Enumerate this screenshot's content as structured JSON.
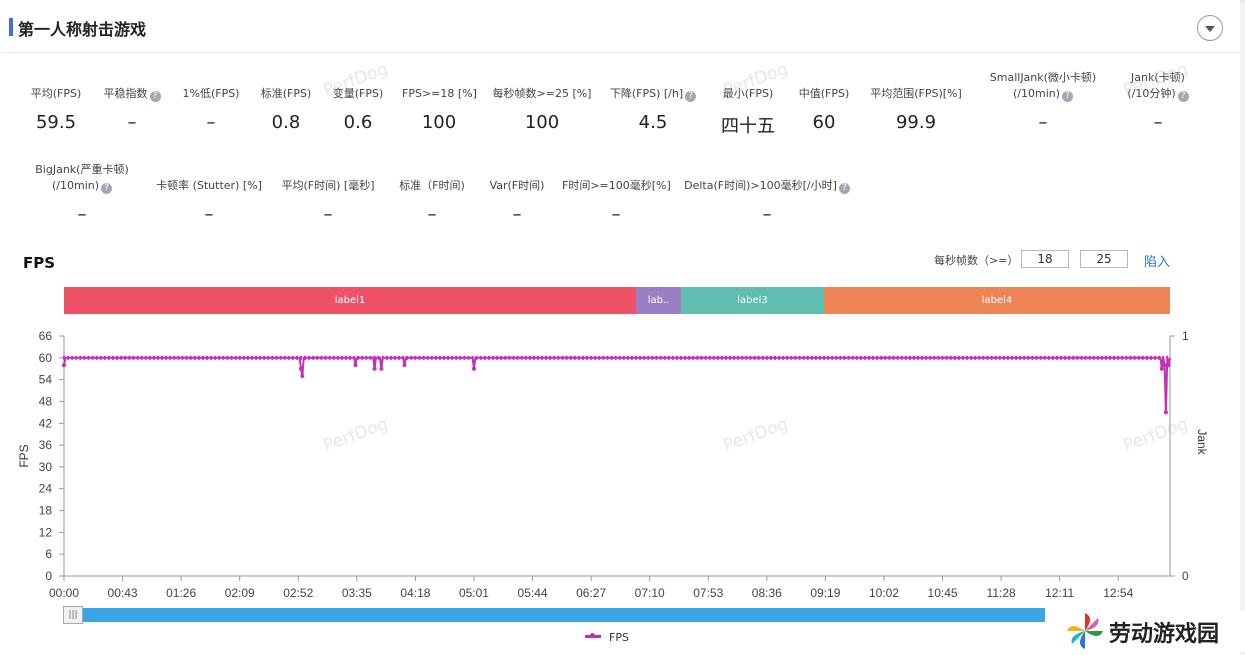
{
  "page": {
    "title": "第一人称射击游戏"
  },
  "metrics_row1": [
    {
      "label": "平均(FPS)",
      "value": "59.5",
      "help": false
    },
    {
      "label": "平稳指数",
      "value": "–",
      "help": true
    },
    {
      "label": "1%低(FPS)",
      "value": "–",
      "help": false
    },
    {
      "label": "标准(FPS)",
      "value": "0.8",
      "help": false
    },
    {
      "label": "变量(FPS)",
      "value": "0.6",
      "help": false
    },
    {
      "label": "FPS>=18 [%]",
      "value": "100",
      "help": false
    },
    {
      "label": "每秒帧数>=25 [%]",
      "value": "100",
      "help": false
    },
    {
      "label": "下降(FPS) [/h]",
      "value": "4.5",
      "help": true
    },
    {
      "label": "最小(FPS)",
      "value": "四十五",
      "help": false
    },
    {
      "label": "中值(FPS)",
      "value": "60",
      "help": false
    },
    {
      "label": "平均范围(FPS)[%]",
      "value": "99.9",
      "help": false
    },
    {
      "label": "SmallJank(微小卡顿)",
      "label2": "(/10min)",
      "value": "–",
      "help": true
    },
    {
      "label": "Jank(卡顿)",
      "label2": "(/10分钟)",
      "value": "–",
      "help": true
    }
  ],
  "metrics_row2": [
    {
      "label": "BigJank(严重卡顿)",
      "label2": "(/10min)",
      "value": "–",
      "help": true
    },
    {
      "label": "卡顿率 (Stutter) [%]",
      "value": "–",
      "help": false
    },
    {
      "label": "平均(F时间) [毫秒]",
      "value": "–",
      "help": false
    },
    {
      "label": "标准（F时间)",
      "value": "–",
      "help": false
    },
    {
      "label": "Var(F时间)",
      "value": "–",
      "help": false
    },
    {
      "label": "F时间>=100毫秒[%]",
      "value": "–",
      "help": false
    },
    {
      "label": "Delta(F时间)>100毫秒[/小时]",
      "value": "–",
      "help": true
    }
  ],
  "fps_section": {
    "title": "FPS",
    "threshold_label": "每秒帧数（>=）",
    "threshold1": "18",
    "threshold2": "25",
    "apply_label": "陷入"
  },
  "watermark": "PerfDog",
  "logo": {
    "text": "劳动游戏园"
  },
  "chart_data": {
    "type": "line",
    "title": "",
    "xlabel": "",
    "ylabel": "FPS",
    "y2label": "Jank",
    "ylim": [
      0,
      66
    ],
    "y2lim": [
      0,
      1
    ],
    "yticks": [
      0,
      6,
      12,
      18,
      24,
      30,
      36,
      42,
      48,
      54,
      60,
      66
    ],
    "y2ticks": [
      "0",
      "1"
    ],
    "xlim_seconds": [
      0,
      812
    ],
    "xticks": [
      "00:00",
      "00:43",
      "01:26",
      "02:09",
      "02:52",
      "03:35",
      "04:18",
      "05:01",
      "05:44",
      "06:27",
      "07:10",
      "07:53",
      "08:36",
      "09:19",
      "10:02",
      "10:45",
      "11:28",
      "12:11",
      "12:54"
    ],
    "grid": false,
    "legend": "bottom-center",
    "bands": [
      {
        "label": "label1",
        "start": 0,
        "end": 420,
        "color": "#ef5167"
      },
      {
        "label": "lab..",
        "start": 420,
        "end": 453,
        "color": "#9a7fc4"
      },
      {
        "label": "label3",
        "start": 453,
        "end": 558,
        "color": "#5fbdb2"
      },
      {
        "label": "label4",
        "start": 558,
        "end": 812,
        "color": "#ef8557"
      }
    ],
    "series": [
      {
        "name": "FPS",
        "color": "#c42fb8",
        "baseline": 60,
        "dips": [
          {
            "t": 0,
            "v": 58
          },
          {
            "t": 174,
            "v": 57
          },
          {
            "t": 175,
            "v": 55
          },
          {
            "t": 214,
            "v": 58
          },
          {
            "t": 228,
            "v": 57
          },
          {
            "t": 233,
            "v": 57
          },
          {
            "t": 250,
            "v": 58
          },
          {
            "t": 301,
            "v": 57
          },
          {
            "t": 806,
            "v": 57
          },
          {
            "t": 808,
            "v": 58
          },
          {
            "t": 809,
            "v": 45
          },
          {
            "t": 811,
            "v": 58
          }
        ]
      }
    ]
  }
}
